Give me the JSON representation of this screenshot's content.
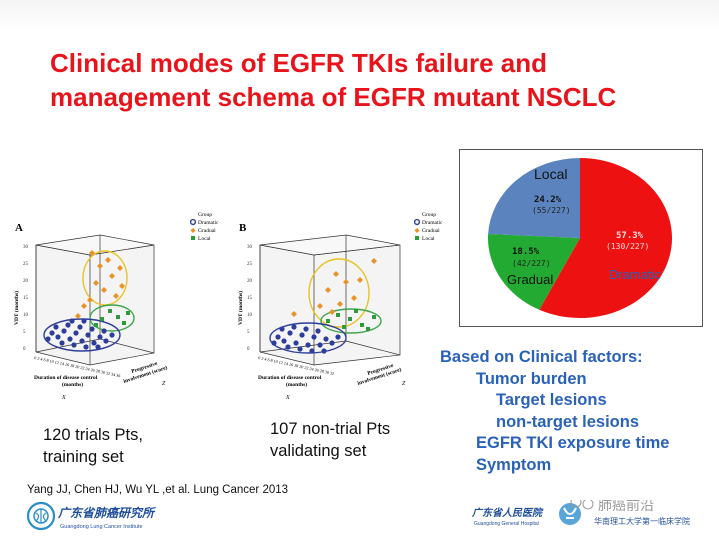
{
  "title": {
    "line1": "Clinical modes of EGFR TKIs failure and",
    "line2": "management schema of EGFR mutant NSCLC"
  },
  "panel_a": {
    "letter": "A",
    "legend_title": "Group",
    "legend": [
      {
        "label": "Dramatic",
        "color": "#2d3e9a",
        "shape": "circle"
      },
      {
        "label": "Gradual",
        "color": "#e8922a",
        "shape": "diamond"
      },
      {
        "label": "Local",
        "color": "#2e9a3a",
        "shape": "square"
      }
    ],
    "y_axis_label": "VDT (months)",
    "y_ticks": [
      "0",
      "5",
      "10",
      "15",
      "20",
      "25",
      "30"
    ],
    "y_side_letter": "Y",
    "x_axis_label_1": "Duration of disease control",
    "x_axis_label_2": "(months)",
    "x_side_letter": "X",
    "z_axis_label_1": "Progressive",
    "z_axis_label_2": "involvement (score)",
    "z_side_letter": "Z",
    "x_ticks": "0 2 4 6 8 10 12 14 16 18 20 22 24 26 28 30 32 34 36"
  },
  "panel_b": {
    "letter": "B",
    "legend_title": "Group",
    "legend": [
      {
        "label": "Dramatic",
        "color": "#2d3e9a",
        "shape": "circle"
      },
      {
        "label": "Gradual",
        "color": "#e8922a",
        "shape": "diamond"
      },
      {
        "label": "Local",
        "color": "#2e9a3a",
        "shape": "square"
      }
    ],
    "y_axis_label": "VDT (months)",
    "y_ticks": [
      "0",
      "5",
      "10",
      "15",
      "20",
      "25",
      "30"
    ],
    "y_side_letter": "Y",
    "x_axis_label_1": "Duration of disease control",
    "x_axis_label_2": "(months)",
    "x_side_letter": "X",
    "z_axis_label_1": "Progressive",
    "z_axis_label_2": "involvement (score)",
    "z_side_letter": "Z",
    "x_ticks": "0 2 4 6 8 10 12 14 16 18 20 22 24 26 28 30 32"
  },
  "caption_a": {
    "line1": "120 trials Pts,",
    "line2": "training set"
  },
  "caption_b": {
    "line1": "107 non-trial Pts",
    "line2": "validating set"
  },
  "chart_data": {
    "type": "pie",
    "slices": [
      {
        "name": "Dramatic",
        "percent": 57.3,
        "count_label": "57.3%",
        "fraction_label": "(130/227)",
        "color": "#ee1111"
      },
      {
        "name": "Gradual",
        "percent": 18.5,
        "count_label": "18.5%",
        "fraction_label": "(42/227)",
        "color": "#22aa33"
      },
      {
        "name": "Local",
        "percent": 24.2,
        "count_label": "24.2%",
        "fraction_label": "(55/227)",
        "color": "#5b84be"
      }
    ]
  },
  "bullets": {
    "heading": "Based on Clinical factors:",
    "item1": "Tumor burden",
    "item1a": "Target lesions",
    "item1b": "non-target  lesions",
    "item2": "EGFR TKI exposure time",
    "item3": "Symptom"
  },
  "citation": "Yang JJ, Chen HJ, Wu YL ,et al. Lung Cancer  2013",
  "logo_left": {
    "name_cn": "广东省肺癌研究所",
    "name_en": "Guangdong Lung Cancer Institute"
  },
  "logo_right": {
    "hospital_cn": "广东省人民医院",
    "hospital_en": "Guangdong General Hospital",
    "watermark": "肺癌前沿",
    "affiliation_cn": "华南理工大学第一临床学院"
  }
}
